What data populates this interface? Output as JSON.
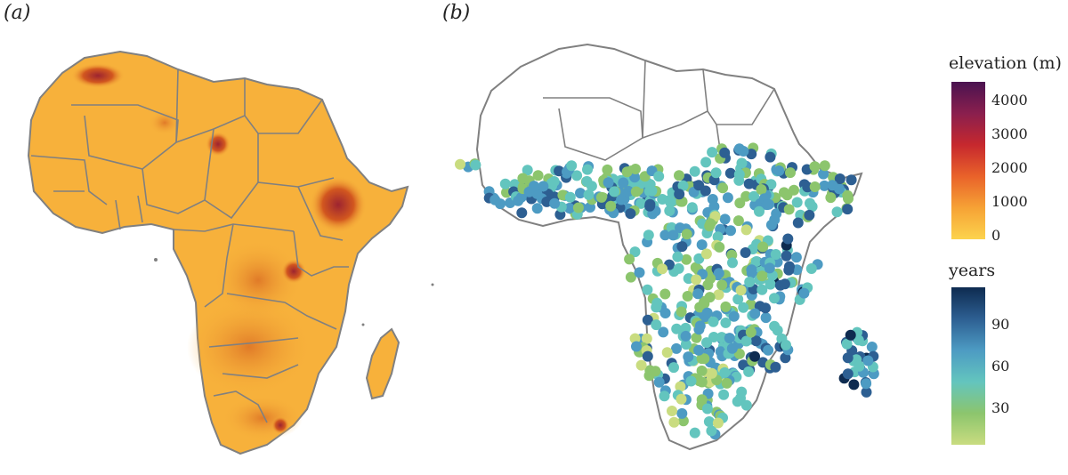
{
  "panels": {
    "a": {
      "label": "(a)"
    },
    "b": {
      "label": "(b)"
    }
  },
  "legend_elevation": {
    "title": "elevation (m)",
    "ticks": [
      "4000",
      "3000",
      "2000",
      "1000",
      "0"
    ],
    "colors": [
      "#4a1350",
      "#8a1f4e",
      "#c6282e",
      "#e9622a",
      "#f6a235",
      "#fcd34d"
    ]
  },
  "legend_years": {
    "title": "years",
    "ticks": [
      "90",
      "60",
      "30"
    ],
    "colors": [
      "#0e2b50",
      "#2d5f92",
      "#4d9bc3",
      "#63c5be",
      "#8cc56d",
      "#c9dc80"
    ]
  },
  "map_colors": {
    "land": "#f7b13b",
    "border": "#808080",
    "highland": "#d2601f",
    "mountain": "#a82c32"
  }
}
